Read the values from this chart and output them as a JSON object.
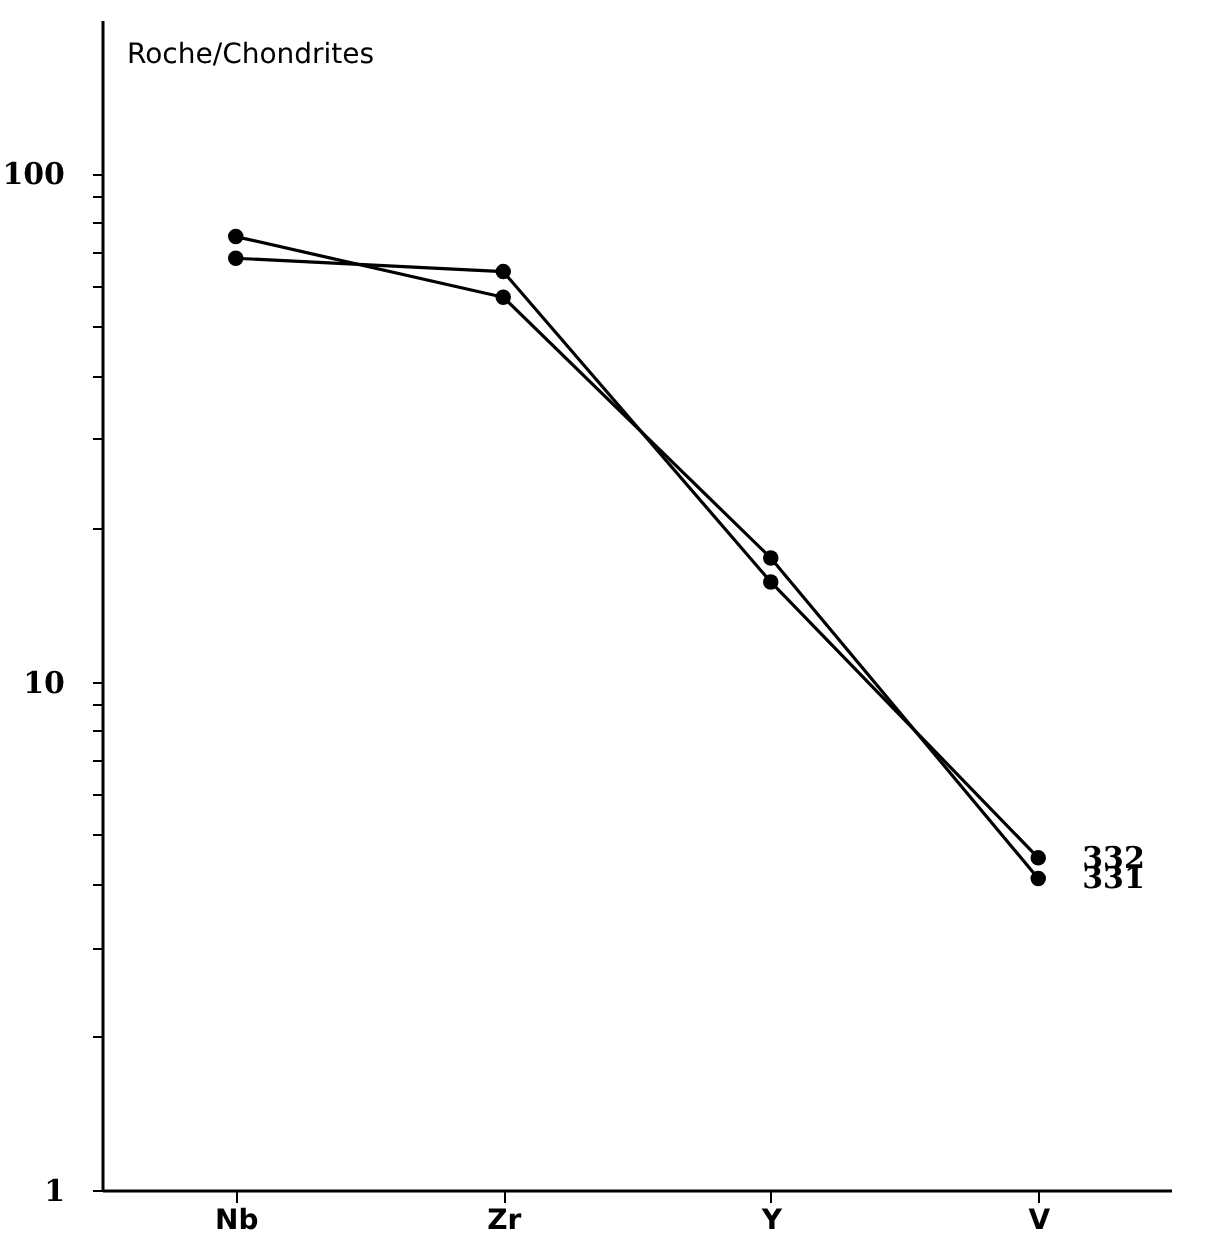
{
  "chart_data": {
    "type": "line",
    "ylabel": "Roche/Chondrites",
    "categories": [
      "Nb",
      "Zr",
      "Y",
      "V"
    ],
    "series": [
      {
        "name": "331",
        "color": "#000000",
        "values": [
          75,
          57,
          17.5,
          4.1
        ]
      },
      {
        "name": "332",
        "color": "#000000",
        "values": [
          68,
          64,
          15.7,
          4.5
        ]
      }
    ],
    "log": "y",
    "ylim": [
      1,
      200
    ],
    "yticks": [
      1,
      {
        "value": 2,
        "label": null
      },
      {
        "value": 3,
        "label": null
      },
      {
        "value": 4,
        "label": null
      },
      {
        "value": 5,
        "label": null
      },
      {
        "value": 6,
        "label": null
      },
      {
        "value": 7,
        "label": null
      },
      {
        "value": 8,
        "label": null
      },
      {
        "value": 9,
        "label": null
      },
      10,
      {
        "value": 20,
        "label": null
      },
      {
        "value": 30,
        "label": null
      },
      {
        "value": 40,
        "label": null
      },
      {
        "value": 50,
        "label": null
      },
      {
        "value": 60,
        "label": null
      },
      {
        "value": 70,
        "label": null
      },
      {
        "value": 80,
        "label": null
      },
      {
        "value": 90,
        "label": null
      },
      100
    ],
    "grid": false,
    "legend": false,
    "marker": "circle",
    "line_style": "solid"
  }
}
